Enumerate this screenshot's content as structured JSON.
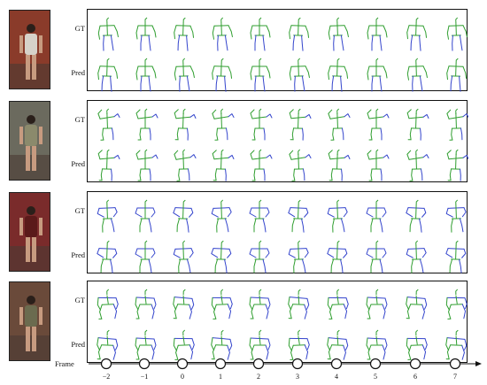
{
  "figure": {
    "row_labels": [
      "GT",
      "Pred"
    ],
    "frame_label": "Frame",
    "frames": [
      "−2",
      "−1",
      "0",
      "1",
      "2",
      "3",
      "4",
      "5",
      "6",
      "7"
    ],
    "colors": {
      "left_limb": "#2f9e2f",
      "right_limb": "#3344cc",
      "torso": "#2f9e2f"
    },
    "sequences": [
      {
        "id": "seq-1",
        "pose": "standing-arms-down",
        "photo_bg": "#8a3b2a"
      },
      {
        "id": "seq-2",
        "pose": "arms-raised",
        "photo_bg": "#6b6a5e"
      },
      {
        "id": "seq-3",
        "pose": "hands-on-hips",
        "photo_bg": "#7a2b2b"
      },
      {
        "id": "seq-4",
        "pose": "bending-forward",
        "photo_bg": "#6a4a3a"
      }
    ]
  }
}
